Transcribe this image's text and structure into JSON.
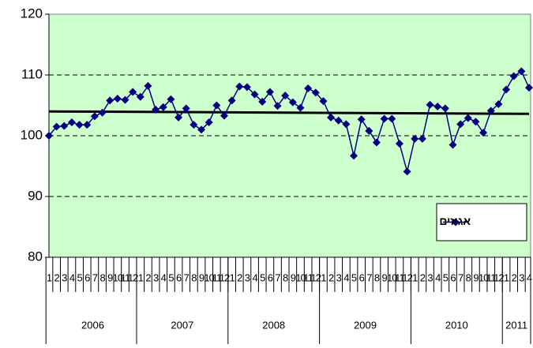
{
  "chart_data": {
    "type": "line",
    "categories": [
      "1",
      "2",
      "3",
      "4",
      "5",
      "6",
      "7",
      "8",
      "9",
      "10",
      "11",
      "12",
      "1",
      "2",
      "3",
      "4",
      "5",
      "6",
      "7",
      "8",
      "9",
      "10",
      "11",
      "12",
      "1",
      "2",
      "3",
      "4",
      "5",
      "6",
      "7",
      "8",
      "9",
      "10",
      "11",
      "12",
      "1",
      "2",
      "3",
      "4",
      "5",
      "6",
      "7",
      "8",
      "9",
      "10",
      "11",
      "12",
      "1",
      "2",
      "3",
      "4",
      "5",
      "6",
      "7",
      "8",
      "9",
      "10",
      "11",
      "12",
      "1",
      "2",
      "3",
      "4"
    ],
    "years": [
      "2006",
      "2007",
      "2008",
      "2009",
      "2010",
      "2011"
    ],
    "series": [
      {
        "name": "אגוזים",
        "color": "#000080",
        "values": [
          100,
          101.5,
          101.6,
          102.2,
          101.8,
          101.8,
          103.2,
          103.8,
          105.8,
          106.1,
          105.9,
          107.2,
          106.4,
          108.2,
          104.3,
          104.7,
          106.0,
          103.0,
          104.5,
          101.8,
          101.0,
          102.2,
          105.0,
          103.3,
          105.8,
          108.1,
          108.0,
          106.8,
          105.6,
          107.2,
          104.9,
          106.6,
          105.5,
          104.6,
          107.8,
          107.1,
          105.7,
          103.0,
          102.5,
          101.9,
          96.7,
          102.7,
          100.8,
          98.9,
          102.8,
          102.8,
          98.7,
          94.1,
          99.5,
          99.5,
          105.1,
          104.8,
          104.5,
          98.5,
          101.9,
          102.9,
          102.3,
          100.5,
          104.1,
          105.2,
          107.6,
          109.8,
          110.6,
          107.9
        ]
      }
    ],
    "trendline": {
      "start": 104,
      "end": 103.6,
      "color": "#000000"
    },
    "ylim": [
      80,
      120
    ],
    "yticks": [
      80,
      90,
      100,
      110,
      120
    ],
    "grid": true,
    "legend": "lower right",
    "plot_color": "#ccffcc"
  }
}
